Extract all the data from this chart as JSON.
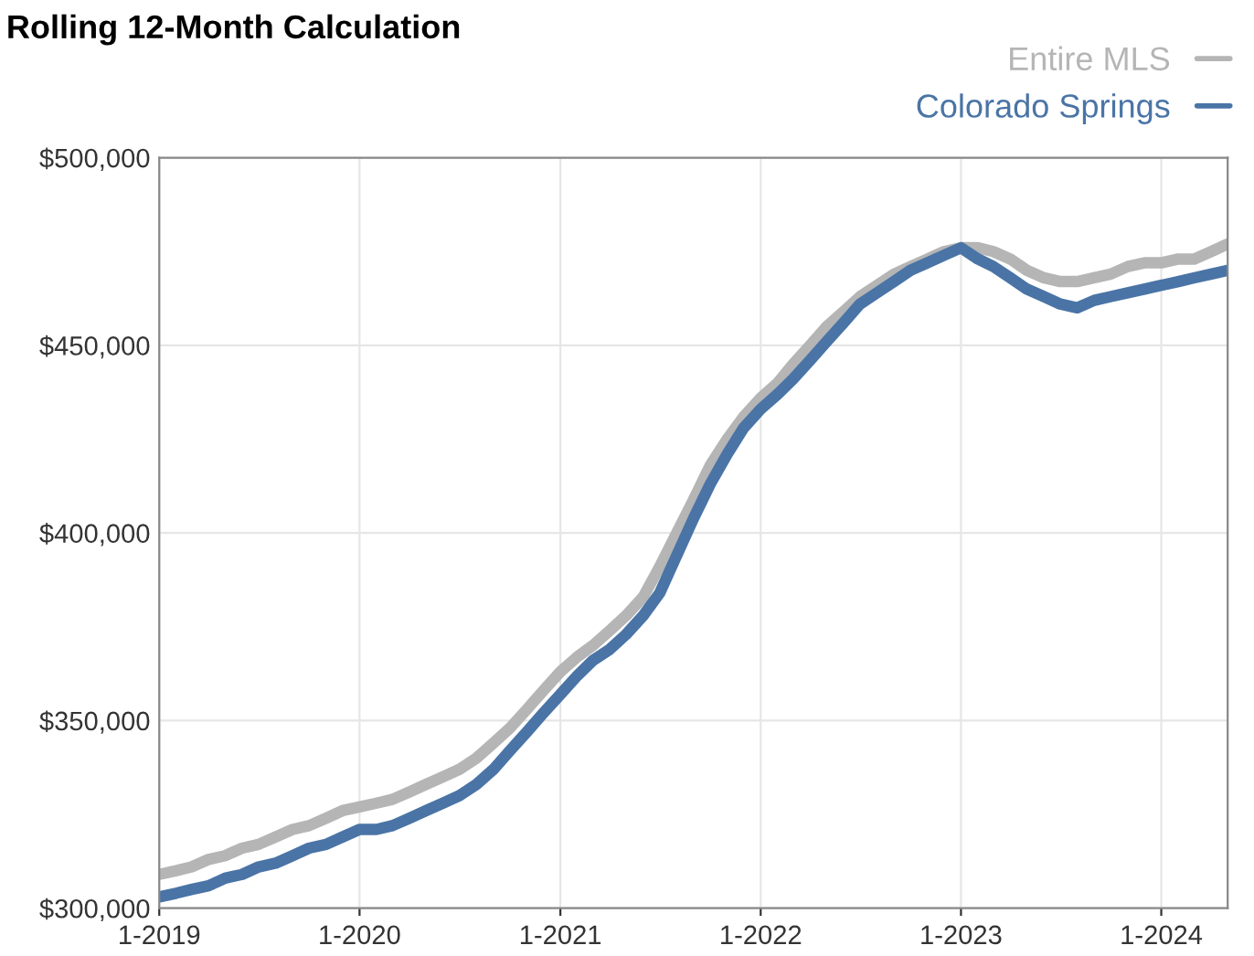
{
  "chart_data": {
    "type": "line",
    "title": "Rolling 12-Month Calculation",
    "x": [
      "2019-01",
      "2019-02",
      "2019-03",
      "2019-04",
      "2019-05",
      "2019-06",
      "2019-07",
      "2019-08",
      "2019-09",
      "2019-10",
      "2019-11",
      "2019-12",
      "2020-01",
      "2020-02",
      "2020-03",
      "2020-04",
      "2020-05",
      "2020-06",
      "2020-07",
      "2020-08",
      "2020-09",
      "2020-10",
      "2020-11",
      "2020-12",
      "2021-01",
      "2021-02",
      "2021-03",
      "2021-04",
      "2021-05",
      "2021-06",
      "2021-07",
      "2021-08",
      "2021-09",
      "2021-10",
      "2021-11",
      "2021-12",
      "2022-01",
      "2022-02",
      "2022-03",
      "2022-04",
      "2022-05",
      "2022-06",
      "2022-07",
      "2022-08",
      "2022-09",
      "2022-10",
      "2022-11",
      "2022-12",
      "2023-01",
      "2023-02",
      "2023-03",
      "2023-04",
      "2023-05",
      "2023-06",
      "2023-07",
      "2023-08",
      "2023-09",
      "2023-10",
      "2023-11",
      "2023-12",
      "2024-01",
      "2024-02",
      "2024-03",
      "2024-04",
      "2024-05"
    ],
    "series": [
      {
        "name": "Entire MLS",
        "color": "#b5b5b5",
        "values": [
          309000,
          310000,
          311000,
          313000,
          314000,
          316000,
          317000,
          319000,
          321000,
          322000,
          324000,
          326000,
          327000,
          328000,
          329000,
          331000,
          333000,
          335000,
          337000,
          340000,
          344000,
          348000,
          353000,
          358000,
          363000,
          367000,
          370000,
          374000,
          378000,
          383000,
          391000,
          400000,
          409000,
          418000,
          425000,
          431000,
          436000,
          440000,
          445000,
          450000,
          455000,
          459000,
          463000,
          466000,
          469000,
          471000,
          473000,
          475000,
          476000,
          476000,
          475000,
          473000,
          470000,
          468000,
          467000,
          467000,
          468000,
          469000,
          471000,
          472000,
          472000,
          473000,
          473000,
          475000,
          477000
        ]
      },
      {
        "name": "Colorado Springs",
        "color": "#4a74a6",
        "values": [
          303000,
          304000,
          305000,
          306000,
          308000,
          309000,
          311000,
          312000,
          314000,
          316000,
          317000,
          319000,
          321000,
          321000,
          322000,
          324000,
          326000,
          328000,
          330000,
          333000,
          337000,
          342000,
          347000,
          352000,
          357000,
          362000,
          366000,
          369000,
          373000,
          378000,
          384000,
          394000,
          404000,
          413000,
          421000,
          428000,
          433000,
          437000,
          441000,
          446000,
          451000,
          456000,
          461000,
          464000,
          467000,
          470000,
          472000,
          474000,
          476000,
          473000,
          471000,
          468000,
          465000,
          463000,
          461000,
          460000,
          462000,
          463000,
          464000,
          465000,
          466000,
          467000,
          468000,
          469000,
          470000
        ]
      }
    ],
    "xlim": [
      "2019-01",
      "2024-05"
    ],
    "xticks": [
      {
        "value": "2019-01",
        "label": "1-2019"
      },
      {
        "value": "2020-01",
        "label": "1-2020"
      },
      {
        "value": "2021-01",
        "label": "1-2021"
      },
      {
        "value": "2022-01",
        "label": "1-2022"
      },
      {
        "value": "2023-01",
        "label": "1-2023"
      },
      {
        "value": "2024-01",
        "label": "1-2024"
      }
    ],
    "ylim": [
      300000,
      500000
    ],
    "yticks": [
      {
        "value": 300000,
        "label": "$300,000"
      },
      {
        "value": 350000,
        "label": "$350,000"
      },
      {
        "value": 400000,
        "label": "$400,000"
      },
      {
        "value": 450000,
        "label": "$450,000"
      },
      {
        "value": 500000,
        "label": "$500,000"
      }
    ],
    "grid": true,
    "legend": "top right",
    "line_style": "solid",
    "marker": "none"
  }
}
